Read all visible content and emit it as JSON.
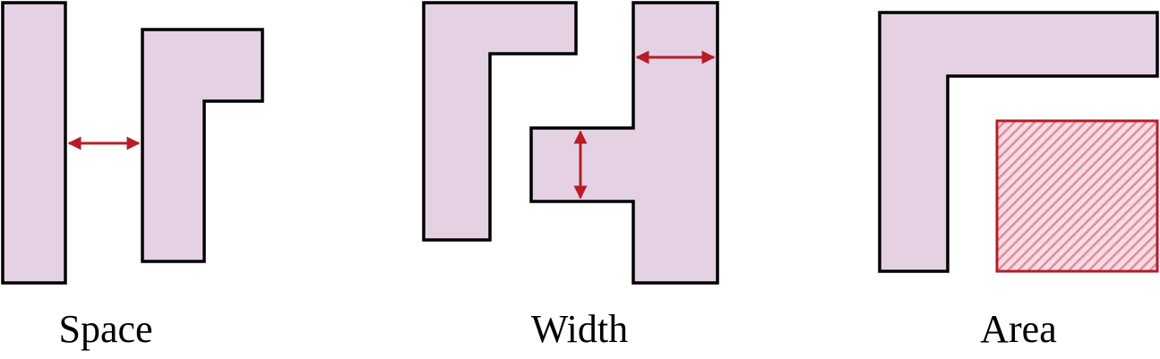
{
  "colors": {
    "shape_fill": "#e4d2e4",
    "shape_stroke": "#000000",
    "rule_accent": "#b71c28",
    "area_hatch": "#e58a9e"
  },
  "panels": [
    {
      "key": "space",
      "caption": "Space"
    },
    {
      "key": "width",
      "caption": "Width"
    },
    {
      "key": "area",
      "caption": "Area"
    }
  ]
}
